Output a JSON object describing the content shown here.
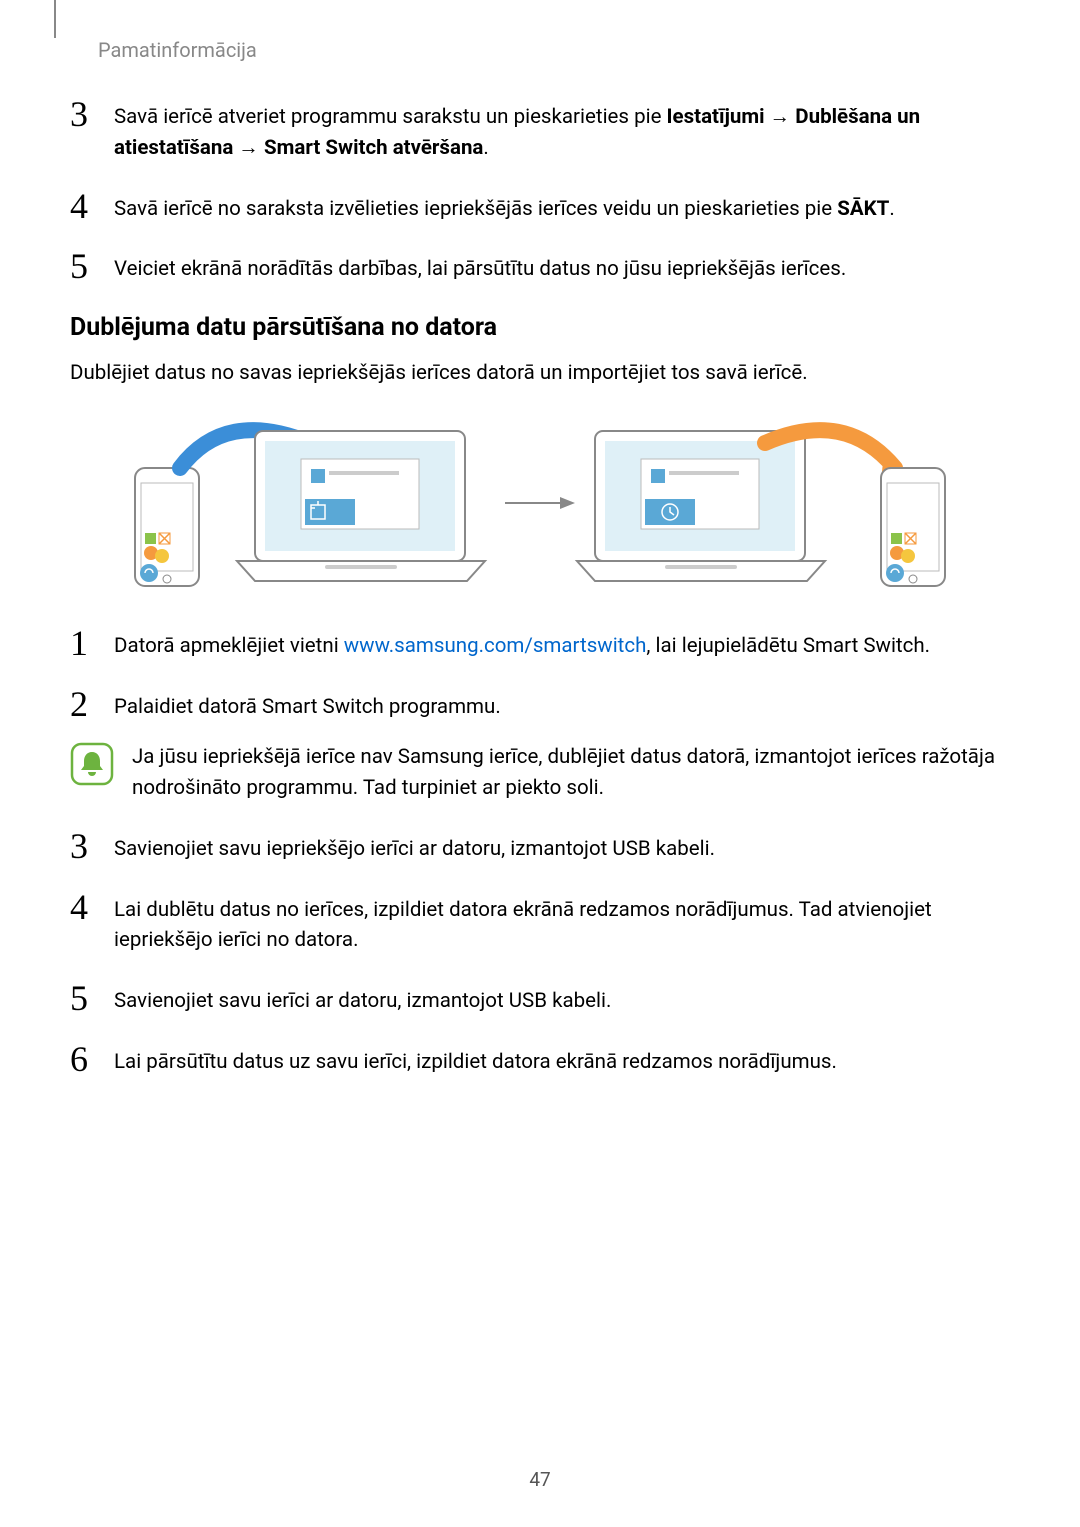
{
  "header": {
    "breadcrumb": "Pamatinformācija"
  },
  "page_number": "47",
  "steps_top": [
    {
      "num": "3",
      "parts": [
        {
          "t": "Savā ierīcē atveriet programmu sarakstu un pieskarieties pie ",
          "b": false
        },
        {
          "t": "Iestatījumi",
          "b": true
        },
        {
          "t": " → ",
          "b": false
        },
        {
          "t": "Dublēšana un atiestatīšana",
          "b": true
        },
        {
          "t": " → ",
          "b": false
        },
        {
          "t": "Smart Switch atvēršana",
          "b": true
        },
        {
          "t": ".",
          "b": false
        }
      ]
    },
    {
      "num": "4",
      "parts": [
        {
          "t": "Savā ierīcē no saraksta izvēlieties iepriekšējās ierīces veidu un pieskarieties pie ",
          "b": false
        },
        {
          "t": "SĀKT",
          "b": true
        },
        {
          "t": ".",
          "b": false
        }
      ]
    },
    {
      "num": "5",
      "parts": [
        {
          "t": "Veiciet ekrānā norādītās darbības, lai pārsūtītu datus no jūsu iepriekšējās ierīces.",
          "b": false
        }
      ]
    }
  ],
  "subheading": "Dublējuma datu pārsūtīšana no datora",
  "intro": "Dublējiet datus no savas iepriekšējās ierīces datorā un importējiet tos savā ierīcē.",
  "figure": {
    "colors": {
      "phone_outline": "#888888",
      "laptop_outline": "#888888",
      "screen_bg": "#dff0f7",
      "app_icon_blue": "#5aa8d6",
      "app_icon_orange": "#f59a3e",
      "app_icon_yellow": "#f5c63e",
      "app_icon_green": "#8bc34a",
      "arrow_blue": "#3b8ed8",
      "arrow_orange": "#f59a3e",
      "sync_icon": "#5aa8d6"
    }
  },
  "steps_bottom": [
    {
      "num": "1",
      "pre": "Datorā apmeklējiet vietni ",
      "link_text": "www.samsung.com/smartswitch",
      "link_href": "http://www.samsung.com/smartswitch",
      "post": ", lai lejupielādētu Smart Switch."
    },
    {
      "num": "2",
      "text": "Palaidiet datorā Smart Switch programmu."
    }
  ],
  "note": {
    "icon_stroke": "#6db33f",
    "icon_fill": "#6db33f",
    "text": "Ja jūsu iepriekšējā ierīce nav Samsung ierīce, dublējiet datus datorā, izmantojot ierīces ražotāja nodrošināto programmu. Tad turpiniet ar piekto soli."
  },
  "steps_after_note": [
    {
      "num": "3",
      "text": "Savienojiet savu iepriekšējo ierīci ar datoru, izmantojot USB kabeli."
    },
    {
      "num": "4",
      "text": "Lai dublētu datus no ierīces, izpildiet datora ekrānā redzamos norādījumus. Tad atvienojiet iepriekšējo ierīci no datora."
    },
    {
      "num": "5",
      "text": "Savienojiet savu ierīci ar datoru, izmantojot USB kabeli."
    },
    {
      "num": "6",
      "text": "Lai pārsūtītu datus uz savu ierīci, izpildiet datora ekrānā redzamos norādījumus."
    }
  ]
}
